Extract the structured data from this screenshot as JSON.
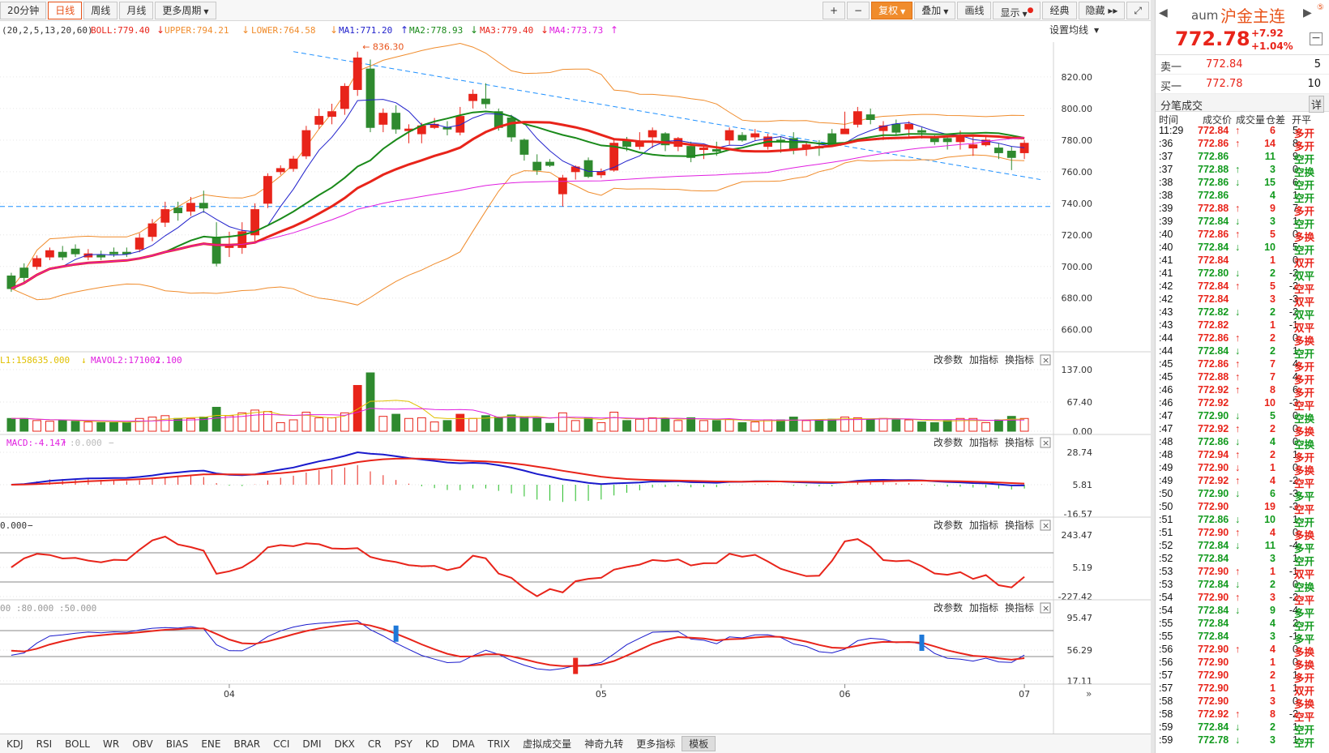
{
  "toolbar": {
    "periods": [
      "20分钟",
      "日线",
      "周线",
      "月线",
      "更多周期"
    ],
    "active_period": "日线",
    "right_buttons": [
      "+",
      "−",
      "复权",
      "叠加",
      "画线",
      "显示",
      "经典",
      "隐藏",
      "▸▸"
    ],
    "fuquan_label": "复权",
    "diejia_label": "叠加",
    "huaxian_label": "画线",
    "xianshi_label": "显示",
    "jingdian_label": "经典",
    "yincang_label": "隐藏"
  },
  "main_panel": {
    "params": "(20,2,5,13,20,60)",
    "boll": "BOLL:779.40",
    "upper": "UPPER:794.21",
    "lower": "LOWER:764.58",
    "ma1": "MA1:771.20",
    "ma2": "MA2:778.93",
    "ma3": "MA3:779.40",
    "ma4": "MA4:773.73",
    "set_ma": "设置均线",
    "peak_label": "836.30",
    "y_ticks": [
      "820.00",
      "800.00",
      "780.00",
      "760.00",
      "740.00",
      "720.00",
      "700.00",
      "680.00",
      "660.00"
    ],
    "colors": {
      "up": "#e8241a",
      "down": "#2f8a2f",
      "ma1": "#2222cc",
      "ma2": "#1a8a1a",
      "ma3": "#e8241a",
      "ma4": "#e01ee0",
      "boll": "#f08c2c",
      "trend": "#1e90ff"
    }
  },
  "vol_panel": {
    "header1": "L1:158635.000",
    "header2": "MAVOL2:171002.100",
    "y_ticks": [
      "137.00",
      "67.40",
      "0.00"
    ]
  },
  "macd_panel": {
    "header": "MACD:-4.147",
    "header2": ":0.000",
    "y_ticks": [
      "28.74",
      "5.81",
      "-16.57"
    ]
  },
  "cci_panel": {
    "header": "0.000",
    "y_ticks": [
      "243.47",
      "5.19",
      "-227.42"
    ]
  },
  "kd_panel": {
    "header": "00  :80.000  :50.000",
    "y_ticks": [
      "95.47",
      "56.29",
      "17.11"
    ]
  },
  "panel_actions": {
    "change": "改参数",
    "add": "加指标",
    "swap": "换指标",
    "close": "×"
  },
  "x_axis": [
    "04",
    "05",
    "06",
    "07"
  ],
  "chart_data": {
    "type": "candlestick",
    "candles": [
      [
        694,
        686,
        696,
        684
      ],
      [
        699,
        693,
        702,
        690
      ],
      [
        700,
        705,
        707,
        698
      ],
      [
        706,
        710,
        712,
        704
      ],
      [
        709,
        706,
        713,
        704
      ],
      [
        711,
        708,
        714,
        706
      ],
      [
        706,
        708,
        711,
        704
      ],
      [
        707,
        706,
        710,
        704
      ],
      [
        709,
        708,
        712,
        706
      ],
      [
        709,
        708,
        712,
        706
      ],
      [
        711,
        718,
        721,
        709
      ],
      [
        719,
        727,
        730,
        716
      ],
      [
        728,
        736,
        741,
        725
      ],
      [
        737,
        734,
        741,
        729
      ],
      [
        735,
        740,
        744,
        732
      ],
      [
        740,
        737,
        748,
        734
      ],
      [
        718,
        702,
        728,
        700
      ],
      [
        712,
        713,
        722,
        706
      ],
      [
        712,
        722,
        728,
        708
      ],
      [
        720,
        736,
        740,
        716
      ],
      [
        740,
        757,
        759,
        737
      ],
      [
        760,
        762,
        764,
        758
      ],
      [
        762,
        768,
        770,
        760
      ],
      [
        770,
        786,
        789,
        768
      ],
      [
        790,
        795,
        800,
        787
      ],
      [
        795,
        798,
        803,
        790
      ],
      [
        800,
        814,
        816,
        796
      ],
      [
        812,
        832,
        836,
        808
      ],
      [
        825,
        788,
        831,
        785
      ],
      [
        790,
        797,
        800,
        785
      ],
      [
        797,
        787,
        802,
        784
      ],
      [
        786,
        787,
        790,
        778
      ],
      [
        784,
        789,
        791,
        778
      ],
      [
        788,
        790,
        794,
        787
      ],
      [
        788,
        787,
        792,
        783
      ],
      [
        785,
        795,
        801,
        783
      ],
      [
        805,
        809,
        812,
        800
      ],
      [
        806,
        803,
        816,
        800
      ],
      [
        798,
        788,
        800,
        786
      ],
      [
        794,
        782,
        796,
        779
      ],
      [
        780,
        771,
        781,
        767
      ],
      [
        766,
        761,
        771,
        758
      ],
      [
        766,
        764,
        768,
        763
      ],
      [
        746,
        756,
        758,
        738
      ],
      [
        760,
        763,
        764,
        755
      ],
      [
        767,
        757,
        769,
        756
      ],
      [
        758,
        760,
        762,
        756
      ],
      [
        761,
        778,
        781,
        760
      ],
      [
        780,
        776,
        782,
        773
      ],
      [
        776,
        779,
        785,
        774
      ],
      [
        782,
        786,
        788,
        775
      ],
      [
        784,
        777,
        785,
        773
      ],
      [
        776,
        781,
        782,
        773
      ],
      [
        776,
        769,
        779,
        766
      ],
      [
        774,
        775,
        777,
        768
      ],
      [
        774,
        773,
        779,
        770
      ],
      [
        780,
        786,
        788,
        777
      ],
      [
        783,
        780,
        785,
        779
      ],
      [
        782,
        784,
        787,
        780
      ],
      [
        776,
        782,
        784,
        774
      ],
      [
        780,
        779,
        782,
        772
      ],
      [
        781,
        774,
        785,
        771
      ],
      [
        775,
        777,
        779,
        770
      ],
      [
        776,
        775,
        780,
        770
      ],
      [
        784,
        777,
        787,
        776
      ],
      [
        784,
        787,
        798,
        784
      ],
      [
        790,
        798,
        801,
        788
      ],
      [
        796,
        793,
        800,
        790
      ],
      [
        786,
        789,
        792,
        780
      ],
      [
        790,
        785,
        793,
        783
      ],
      [
        787,
        790,
        792,
        782
      ],
      [
        786,
        785,
        788,
        781
      ],
      [
        781,
        779,
        783,
        777
      ],
      [
        781,
        779,
        783,
        774
      ],
      [
        779,
        782,
        786,
        774
      ],
      [
        775,
        777,
        782,
        770
      ],
      [
        777,
        780,
        782,
        776
      ],
      [
        775,
        772,
        778,
        768
      ],
      [
        773,
        769,
        776,
        761
      ],
      [
        772,
        778,
        780,
        768
      ]
    ],
    "x_labels": [
      "04",
      "05",
      "06",
      "07"
    ]
  },
  "quote": {
    "code": "aum",
    "name": "沪金主连",
    "price": "772.78",
    "change": "+7.92",
    "pct": "+1.04%",
    "sell_label": "卖一",
    "sell_price": "772.84",
    "sell_vol": "5",
    "buy_label": "买一",
    "buy_price": "772.78",
    "buy_vol": "10",
    "trades_title": "分笔成交",
    "detail": "详",
    "cols": [
      "时间",
      "成交价",
      "成交量",
      "仓差",
      "开平"
    ]
  },
  "trades": [
    {
      "t": "11:29",
      "p": "772.84",
      "a": "↑",
      "v": "6",
      "d": "5",
      "k": "多开",
      "c": "red"
    },
    {
      "t": ":36",
      "p": "772.86",
      "a": "↑",
      "v": "14",
      "d": "8",
      "k": "多开",
      "c": "red"
    },
    {
      "t": ":37",
      "p": "772.86",
      "a": "",
      "v": "11",
      "d": "9",
      "k": "空开",
      "c": "green"
    },
    {
      "t": ":37",
      "p": "772.88",
      "a": "↑",
      "v": "3",
      "d": "0",
      "k": "空换",
      "c": "green"
    },
    {
      "t": ":38",
      "p": "772.86",
      "a": "↓",
      "v": "15",
      "d": "6",
      "k": "空开",
      "c": "green"
    },
    {
      "t": ":38",
      "p": "772.86",
      "a": "",
      "v": "4",
      "d": "1",
      "k": "空开",
      "c": "green"
    },
    {
      "t": ":39",
      "p": "772.88",
      "a": "↑",
      "v": "9",
      "d": "7",
      "k": "多开",
      "c": "red"
    },
    {
      "t": ":39",
      "p": "772.84",
      "a": "↓",
      "v": "3",
      "d": "1",
      "k": "空开",
      "c": "green"
    },
    {
      "t": ":40",
      "p": "772.86",
      "a": "↑",
      "v": "5",
      "d": "0",
      "k": "多换",
      "c": "red"
    },
    {
      "t": ":40",
      "p": "772.84",
      "a": "↓",
      "v": "10",
      "d": "5",
      "k": "空开",
      "c": "green"
    },
    {
      "t": ":41",
      "p": "772.84",
      "a": "",
      "v": "1",
      "d": "0",
      "k": "双开",
      "c": "red"
    },
    {
      "t": ":41",
      "p": "772.80",
      "a": "↓",
      "v": "2",
      "d": "-2",
      "k": "双平",
      "c": "green"
    },
    {
      "t": ":42",
      "p": "772.84",
      "a": "↑",
      "v": "5",
      "d": "-2",
      "k": "空平",
      "c": "red"
    },
    {
      "t": ":42",
      "p": "772.84",
      "a": "",
      "v": "3",
      "d": "-3",
      "k": "双平",
      "c": "red"
    },
    {
      "t": ":43",
      "p": "772.82",
      "a": "↓",
      "v": "2",
      "d": "-2",
      "k": "双平",
      "c": "green"
    },
    {
      "t": ":43",
      "p": "772.82",
      "a": "",
      "v": "1",
      "d": "-1",
      "k": "双平",
      "c": "red"
    },
    {
      "t": ":44",
      "p": "772.86",
      "a": "↑",
      "v": "2",
      "d": "0",
      "k": "多换",
      "c": "red"
    },
    {
      "t": ":44",
      "p": "772.84",
      "a": "↓",
      "v": "2",
      "d": "1",
      "k": "空开",
      "c": "green"
    },
    {
      "t": ":45",
      "p": "772.86",
      "a": "↑",
      "v": "7",
      "d": "4",
      "k": "多开",
      "c": "red"
    },
    {
      "t": ":45",
      "p": "772.88",
      "a": "↑",
      "v": "7",
      "d": "4",
      "k": "多开",
      "c": "red"
    },
    {
      "t": ":46",
      "p": "772.92",
      "a": "↑",
      "v": "8",
      "d": "6",
      "k": "多开",
      "c": "red"
    },
    {
      "t": ":46",
      "p": "772.92",
      "a": "",
      "v": "10",
      "d": "-3",
      "k": "空平",
      "c": "red"
    },
    {
      "t": ":47",
      "p": "772.90",
      "a": "↓",
      "v": "5",
      "d": "0",
      "k": "空换",
      "c": "green"
    },
    {
      "t": ":47",
      "p": "772.92",
      "a": "↑",
      "v": "2",
      "d": "0",
      "k": "多换",
      "c": "red"
    },
    {
      "t": ":48",
      "p": "772.86",
      "a": "↓",
      "v": "4",
      "d": "0",
      "k": "空换",
      "c": "green"
    },
    {
      "t": ":48",
      "p": "772.94",
      "a": "↑",
      "v": "2",
      "d": "1",
      "k": "多开",
      "c": "red"
    },
    {
      "t": ":49",
      "p": "772.90",
      "a": "↓",
      "v": "1",
      "d": "0",
      "k": "多换",
      "c": "red"
    },
    {
      "t": ":49",
      "p": "772.92",
      "a": "↑",
      "v": "4",
      "d": "-2",
      "k": "空平",
      "c": "red"
    },
    {
      "t": ":50",
      "p": "772.90",
      "a": "↓",
      "v": "6",
      "d": "-3",
      "k": "多平",
      "c": "green"
    },
    {
      "t": ":50",
      "p": "772.90",
      "a": "",
      "v": "19",
      "d": "-3",
      "k": "空平",
      "c": "red"
    },
    {
      "t": ":51",
      "p": "772.86",
      "a": "↓",
      "v": "10",
      "d": "1",
      "k": "空开",
      "c": "green"
    },
    {
      "t": ":51",
      "p": "772.90",
      "a": "↑",
      "v": "4",
      "d": "0",
      "k": "多换",
      "c": "red"
    },
    {
      "t": ":52",
      "p": "772.84",
      "a": "↓",
      "v": "11",
      "d": "-4",
      "k": "多平",
      "c": "green"
    },
    {
      "t": ":52",
      "p": "772.84",
      "a": "",
      "v": "3",
      "d": "1",
      "k": "空开",
      "c": "green"
    },
    {
      "t": ":53",
      "p": "772.90",
      "a": "↑",
      "v": "1",
      "d": "-1",
      "k": "双平",
      "c": "red"
    },
    {
      "t": ":53",
      "p": "772.84",
      "a": "↓",
      "v": "2",
      "d": "0",
      "k": "空换",
      "c": "green"
    },
    {
      "t": ":54",
      "p": "772.90",
      "a": "↑",
      "v": "3",
      "d": "-2",
      "k": "空平",
      "c": "red"
    },
    {
      "t": ":54",
      "p": "772.84",
      "a": "↓",
      "v": "9",
      "d": "-4",
      "k": "多平",
      "c": "green"
    },
    {
      "t": ":55",
      "p": "772.84",
      "a": "",
      "v": "4",
      "d": "2",
      "k": "空开",
      "c": "green"
    },
    {
      "t": ":55",
      "p": "772.84",
      "a": "",
      "v": "3",
      "d": "-1",
      "k": "多平",
      "c": "green"
    },
    {
      "t": ":56",
      "p": "772.90",
      "a": "↑",
      "v": "4",
      "d": "0",
      "k": "多换",
      "c": "red"
    },
    {
      "t": ":56",
      "p": "772.90",
      "a": "",
      "v": "1",
      "d": "0",
      "k": "多换",
      "c": "red"
    },
    {
      "t": ":57",
      "p": "772.90",
      "a": "",
      "v": "2",
      "d": "1",
      "k": "多开",
      "c": "red"
    },
    {
      "t": ":57",
      "p": "772.90",
      "a": "",
      "v": "1",
      "d": "1",
      "k": "双开",
      "c": "red"
    },
    {
      "t": ":58",
      "p": "772.90",
      "a": "",
      "v": "3",
      "d": "0",
      "k": "多换",
      "c": "red"
    },
    {
      "t": ":58",
      "p": "772.92",
      "a": "↑",
      "v": "8",
      "d": "-2",
      "k": "空平",
      "c": "red"
    },
    {
      "t": ":59",
      "p": "772.84",
      "a": "↓",
      "v": "2",
      "d": "1",
      "k": "空开",
      "c": "green"
    },
    {
      "t": ":59",
      "p": "772.78",
      "a": "↓",
      "v": "3",
      "d": "1",
      "k": "空开",
      "c": "green"
    }
  ],
  "indicator_tabs": [
    "KDJ",
    "RSI",
    "BOLL",
    "WR",
    "OBV",
    "BIAS",
    "ENE",
    "BRAR",
    "CCI",
    "DMI",
    "DKX",
    "CR",
    "PSY",
    "KD",
    "DMA",
    "TRIX",
    "虚拟成交量",
    "神奇九转",
    "更多指标",
    "模板"
  ],
  "selected_tab": "模板"
}
